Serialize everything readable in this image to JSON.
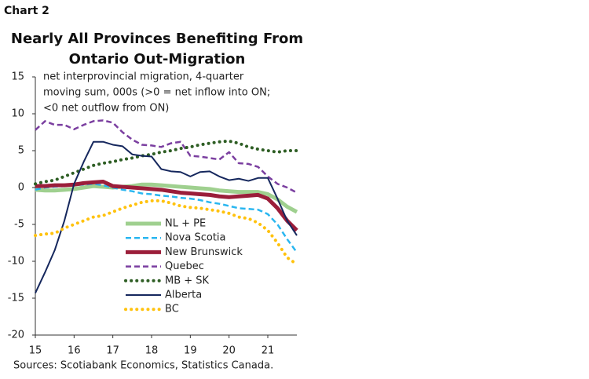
{
  "chart_label": "Chart 2",
  "chart_data": {
    "type": "line",
    "title": [
      "Nearly All Provinces Benefiting From",
      "Ontario Out-Migration"
    ],
    "annotation": [
      "net interprovincial migration, 4-quarter",
      "moving sum, 000s (>0 = net inflow into ON;",
      "<0 net outflow from ON)"
    ],
    "source": "Sources: Scotiabank Economics, Statistics Canada.",
    "x": [
      15,
      15.25,
      15.5,
      15.75,
      16,
      16.25,
      16.5,
      16.75,
      17,
      17.25,
      17.5,
      17.75,
      18,
      18.25,
      18.5,
      18.75,
      19,
      19.25,
      19.5,
      19.75,
      20,
      20.25,
      20.5,
      20.75,
      21,
      21.25,
      21.5,
      21.75
    ],
    "xlim": [
      15,
      21.75
    ],
    "xticks": [
      15,
      16,
      17,
      18,
      19,
      20,
      21
    ],
    "ylim": [
      -20,
      15
    ],
    "yticks": [
      15,
      10,
      5,
      0,
      -5,
      -10,
      -15,
      -20
    ],
    "grid": false,
    "series": [
      {
        "name": "NL + PE",
        "color": "#9fd08f",
        "style": "thick",
        "values": [
          -0.3,
          -0.4,
          -0.4,
          -0.3,
          -0.2,
          0,
          0.2,
          0.1,
          0,
          0.1,
          0.2,
          0.4,
          0.4,
          0.3,
          0.2,
          0.1,
          0,
          -0.1,
          -0.2,
          -0.4,
          -0.5,
          -0.6,
          -0.6,
          -0.6,
          -0.9,
          -1.6,
          -2.6,
          -3.3
        ]
      },
      {
        "name": "Nova Scotia",
        "color": "#29b6f0",
        "style": "dashed",
        "values": [
          -0.3,
          0,
          0.1,
          0.2,
          0.3,
          0.4,
          0.5,
          0.3,
          0,
          -0.3,
          -0.5,
          -0.8,
          -0.9,
          -1.1,
          -1.2,
          -1.4,
          -1.5,
          -1.7,
          -2.0,
          -2.2,
          -2.5,
          -2.8,
          -2.9,
          -3.0,
          -3.6,
          -5.0,
          -7.0,
          -8.8
        ]
      },
      {
        "name": "New Brunswick",
        "color": "#9b1e3a",
        "style": "thick",
        "values": [
          0.2,
          0.2,
          0.3,
          0.3,
          0.4,
          0.6,
          0.7,
          0.8,
          0.2,
          0.1,
          0.0,
          -0.1,
          -0.2,
          -0.3,
          -0.5,
          -0.7,
          -0.8,
          -0.9,
          -1.0,
          -1.2,
          -1.3,
          -1.2,
          -1.1,
          -1.0,
          -1.5,
          -2.8,
          -4.5,
          -5.8
        ]
      },
      {
        "name": "Quebec",
        "color": "#7b3fa0",
        "style": "dashed",
        "values": [
          7.8,
          9.0,
          8.5,
          8.5,
          7.9,
          8.5,
          9.0,
          9.1,
          8.8,
          7.5,
          6.5,
          5.8,
          5.7,
          5.5,
          6.0,
          6.2,
          4.3,
          4.2,
          4.0,
          3.8,
          4.8,
          3.3,
          3.2,
          2.8,
          1.5,
          0.5,
          0,
          -0.7
        ]
      },
      {
        "name": "MB + SK",
        "color": "#2e5e24",
        "style": "dotted",
        "values": [
          0.5,
          0.8,
          1.0,
          1.5,
          2.0,
          2.5,
          3.0,
          3.3,
          3.5,
          3.8,
          4.0,
          4.3,
          4.5,
          4.8,
          5.0,
          5.3,
          5.5,
          5.8,
          6.0,
          6.2,
          6.3,
          6.0,
          5.5,
          5.2,
          5.0,
          4.8,
          5.0,
          5.0
        ]
      },
      {
        "name": "Alberta",
        "color": "#15275d",
        "style": "solid",
        "values": [
          -14.3,
          -11.5,
          -8.5,
          -4.5,
          0.5,
          3.5,
          6.2,
          6.2,
          5.8,
          5.6,
          4.5,
          4.3,
          4.2,
          2.5,
          2.2,
          2.1,
          1.5,
          2.1,
          2.2,
          1.5,
          1.0,
          1.2,
          0.9,
          1.3,
          1.3,
          -1.5,
          -4.5,
          -6.5
        ]
      },
      {
        "name": "BC",
        "color": "#ffc20e",
        "style": "dotted",
        "values": [
          -6.5,
          -6.3,
          -6.2,
          -5.5,
          -5.0,
          -4.5,
          -4.0,
          -3.8,
          -3.3,
          -2.8,
          -2.4,
          -2.0,
          -1.8,
          -1.8,
          -2.1,
          -2.5,
          -2.7,
          -2.8,
          -3.0,
          -3.2,
          -3.5,
          -4.0,
          -4.2,
          -4.8,
          -5.8,
          -7.5,
          -9.5,
          -10.4
        ]
      }
    ]
  }
}
